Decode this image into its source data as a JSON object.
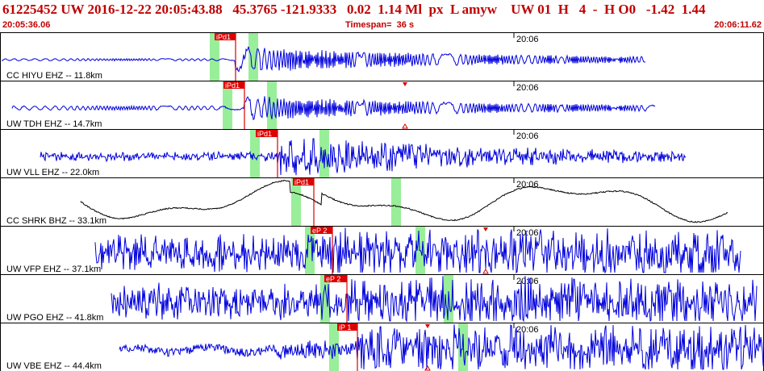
{
  "header": {
    "title_line": "61225452 UW 2016-12-22 20:05:43.88   45.3765 -121.9333   0.02  1.14 Ml  px  L amyw    UW 01  H   4  -  H O0   -1.42  1.44",
    "start_time": "20:05:36.06",
    "timespan": "Timespan=  36 s",
    "end_time": "20:06:11.62"
  },
  "minute_tick_label": "20:06",
  "colors": {
    "header_text": "#c00000",
    "trace_blue": "#0000dd",
    "trace_black": "#000000",
    "pick_red": "#dd0000",
    "window_green": "#99ee99",
    "panel_border": "#000000"
  },
  "panels": [
    {
      "label": "CC HIYU EHZ -- 11.8km",
      "pick_label": "iPd1",
      "color_key": "trace_blue"
    },
    {
      "label": "UW TDH EHZ -- 14.7km",
      "pick_label": "iPd1",
      "color_key": "trace_blue"
    },
    {
      "label": "UW VLL EHZ -- 22.0km",
      "pick_label": "iPd1",
      "color_key": "trace_blue"
    },
    {
      "label": "CC SHRK BHZ -- 33.1km",
      "pick_label": "iPd1",
      "color_key": "trace_black"
    },
    {
      "label": "UW VFP EHZ -- 37.1km",
      "pick_label": "eP 2",
      "color_key": "trace_blue"
    },
    {
      "label": "UW PGO EHZ -- 41.8km",
      "pick_label": "eP 2",
      "color_key": "trace_blue"
    },
    {
      "label": "UW VBE EHZ -- 44.4km",
      "pick_label": "iP 1",
      "color_key": "trace_blue"
    }
  ]
}
